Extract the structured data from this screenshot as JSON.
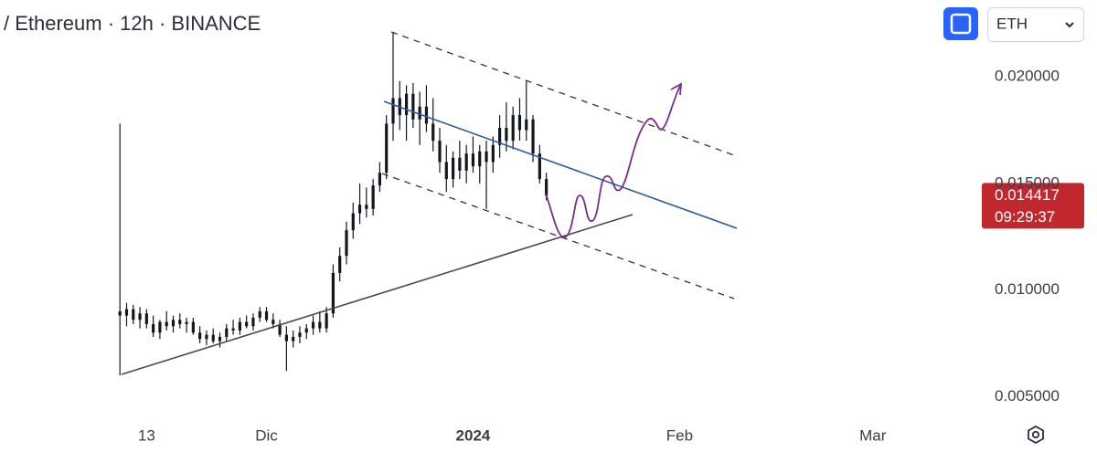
{
  "header": {
    "title": "/ Ethereum · 12h · BINANCE"
  },
  "symbol_selector": "ETH",
  "chart_data": {
    "type": "candlestick",
    "color": "#131722",
    "open": [
      0.009,
      0.0088,
      0.0091,
      0.0086,
      0.0089,
      0.0084,
      0.008,
      0.0085,
      0.0083,
      0.0086,
      0.0084,
      0.0085,
      0.008,
      0.0077,
      0.0079,
      0.0076,
      0.0078,
      0.0082,
      0.0081,
      0.0085,
      0.0083,
      0.0087,
      0.009,
      0.0086,
      0.0084,
      0.0079,
      0.0076,
      0.0078,
      0.008,
      0.0082,
      0.0085,
      0.0082,
      0.0089,
      0.0108,
      0.0116,
      0.0128,
      0.0136,
      0.014,
      0.0138,
      0.0149,
      0.0155,
      0.0178,
      0.019,
      0.0182,
      0.0192,
      0.018,
      0.0186,
      0.0178,
      0.017,
      0.016,
      0.0152,
      0.0162,
      0.0156,
      0.0164,
      0.0158,
      0.0165,
      0.016,
      0.0168,
      0.0176,
      0.017,
      0.0182,
      0.0175,
      0.018,
      0.0164,
      0.0152
    ],
    "high": [
      0.0178,
      0.0094,
      0.0093,
      0.0092,
      0.0091,
      0.0088,
      0.0086,
      0.009,
      0.0088,
      0.0089,
      0.0087,
      0.0087,
      0.0083,
      0.0081,
      0.0082,
      0.008,
      0.0084,
      0.0086,
      0.0087,
      0.0088,
      0.0089,
      0.0092,
      0.0092,
      0.0089,
      0.0086,
      0.0083,
      0.0081,
      0.0083,
      0.0084,
      0.0088,
      0.009,
      0.0092,
      0.0112,
      0.012,
      0.0132,
      0.0141,
      0.015,
      0.0148,
      0.0152,
      0.016,
      0.0182,
      0.0221,
      0.0198,
      0.0196,
      0.0197,
      0.0193,
      0.0196,
      0.019,
      0.0176,
      0.0168,
      0.0165,
      0.017,
      0.0168,
      0.0172,
      0.0168,
      0.017,
      0.0172,
      0.0182,
      0.0188,
      0.0186,
      0.019,
      0.0198,
      0.0182,
      0.0168,
      0.0155
    ],
    "low": [
      0.006,
      0.0083,
      0.0084,
      0.0082,
      0.0082,
      0.0078,
      0.0077,
      0.0081,
      0.008,
      0.0082,
      0.008,
      0.0079,
      0.0075,
      0.0074,
      0.0075,
      0.0073,
      0.0076,
      0.0079,
      0.0079,
      0.0082,
      0.0081,
      0.0085,
      0.0085,
      0.0082,
      0.0078,
      0.0062,
      0.0073,
      0.0075,
      0.0077,
      0.0079,
      0.008,
      0.008,
      0.0087,
      0.0104,
      0.0112,
      0.0124,
      0.0131,
      0.0134,
      0.0135,
      0.0146,
      0.0152,
      0.017,
      0.0175,
      0.017,
      0.0176,
      0.0168,
      0.0174,
      0.0165,
      0.0155,
      0.0146,
      0.0148,
      0.0152,
      0.015,
      0.0155,
      0.015,
      0.0138,
      0.0155,
      0.0162,
      0.0165,
      0.0166,
      0.017,
      0.017,
      0.016,
      0.015,
      0.0142
    ],
    "close": [
      0.0088,
      0.0091,
      0.0086,
      0.0089,
      0.0084,
      0.008,
      0.0085,
      0.0083,
      0.0086,
      0.0084,
      0.0085,
      0.008,
      0.0077,
      0.0079,
      0.0076,
      0.0078,
      0.0082,
      0.0081,
      0.0085,
      0.0083,
      0.0087,
      0.009,
      0.0086,
      0.0084,
      0.0079,
      0.0076,
      0.0078,
      0.008,
      0.0082,
      0.0085,
      0.0082,
      0.0089,
      0.0108,
      0.0116,
      0.0128,
      0.0136,
      0.014,
      0.0138,
      0.0149,
      0.0155,
      0.0178,
      0.019,
      0.0182,
      0.0192,
      0.018,
      0.0186,
      0.0178,
      0.017,
      0.016,
      0.0152,
      0.0162,
      0.0156,
      0.0164,
      0.0158,
      0.0165,
      0.016,
      0.0168,
      0.0176,
      0.017,
      0.0182,
      0.0175,
      0.018,
      0.0164,
      0.0152,
      0.014417
    ],
    "xlim": [
      -18,
      129.5
    ],
    "xticks": [
      {
        "value": 4,
        "label": "13"
      },
      {
        "value": 22,
        "label": "Dic"
      },
      {
        "value": 53,
        "label": "2024"
      },
      {
        "value": 84,
        "label": "Feb"
      },
      {
        "value": 113,
        "label": "Mar"
      }
    ],
    "ylim": [
      0.0039,
      0.0236
    ],
    "yticks": [
      {
        "value": 0.005,
        "label": "0.005000"
      },
      {
        "value": 0.01,
        "label": "0.010000"
      },
      {
        "value": 0.015,
        "label": "0.015000"
      },
      {
        "value": 0.02,
        "label": "0.020000"
      }
    ],
    "last_price": {
      "value": 0.014417,
      "label": "0.014417"
    },
    "countdown": "09:29:37"
  }
}
